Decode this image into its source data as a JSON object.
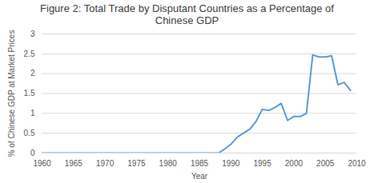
{
  "chart_data": {
    "type": "line",
    "title": "Figure 2: Total Trade by Disputant Countries as a Percentage of Chinese GDP",
    "x_label": "Year",
    "y_label": "% of Chinese GDP at Market Prices",
    "x": [
      1960,
      1961,
      1962,
      1963,
      1964,
      1965,
      1966,
      1967,
      1968,
      1969,
      1970,
      1971,
      1972,
      1973,
      1974,
      1975,
      1976,
      1977,
      1978,
      1979,
      1980,
      1981,
      1982,
      1983,
      1984,
      1985,
      1986,
      1987,
      1988,
      1989,
      1990,
      1991,
      1992,
      1993,
      1994,
      1995,
      1996,
      1997,
      1998,
      1999,
      2000,
      2001,
      2002,
      2003,
      2004,
      2005,
      2006,
      2007,
      2008,
      2009
    ],
    "values": [
      0,
      0,
      0,
      0,
      0,
      0,
      0,
      0,
      0,
      0,
      0,
      0,
      0,
      0,
      0,
      0,
      0,
      0,
      0,
      0,
      0,
      0,
      0,
      0,
      0,
      0,
      0,
      0,
      0,
      0.1,
      0.22,
      0.4,
      0.5,
      0.6,
      0.8,
      1.1,
      1.07,
      1.15,
      1.25,
      0.82,
      0.92,
      0.92,
      1.0,
      2.47,
      2.42,
      2.42,
      2.45,
      1.72,
      1.78,
      1.58
    ],
    "color": "#5b9bd5",
    "xlim": [
      1960,
      2010
    ],
    "xticks": [
      1960,
      1965,
      1970,
      1975,
      1980,
      1985,
      1990,
      1995,
      2000,
      2005,
      2010
    ],
    "ylim": [
      0,
      3
    ],
    "yticks": [
      0,
      0.5,
      1,
      1.5,
      2,
      2.5,
      3
    ],
    "grid": true
  }
}
